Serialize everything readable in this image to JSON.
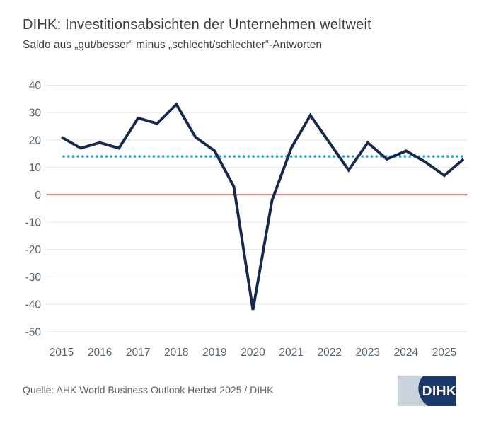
{
  "header": {
    "title": "DIHK: Investitionsabsichten der Unternehmen weltweit",
    "subtitle": "Saldo aus „gut/besser“ minus „schlecht/schlechter“-Antworten"
  },
  "footer": {
    "source": "Quelle: AHK World Business Outlook Herbst 2025 / DIHK",
    "logo_text": "DIHK"
  },
  "colors": {
    "series_line": "#18294e",
    "zero_line": "#bf4a47",
    "reference_line": "#29a8dc",
    "grid": "#e7e7e7",
    "tick_text": "#55636f",
    "logo_navy": "#1b3a6b",
    "logo_light": "#c9d1dc"
  },
  "chart_data": {
    "type": "line",
    "title": "DIHK: Investitionsabsichten der Unternehmen weltweit",
    "subtitle": "Saldo aus „gut/besser“ minus „schlecht/schlechter“-Antworten",
    "x": [
      2015.0,
      2015.5,
      2016.0,
      2016.5,
      2017.0,
      2017.5,
      2018.0,
      2018.5,
      2019.0,
      2019.5,
      2020.0,
      2020.5,
      2021.0,
      2021.5,
      2022.0,
      2022.5,
      2023.0,
      2023.5,
      2024.0,
      2024.5,
      2025.0,
      2025.5
    ],
    "values": [
      21,
      17,
      19,
      17,
      28,
      26,
      33,
      21,
      16,
      3,
      -42,
      -2,
      17,
      29,
      19,
      9,
      19,
      13,
      16,
      12,
      7,
      13
    ],
    "x_ticks": [
      "2015",
      "2016",
      "2017",
      "2018",
      "2019",
      "2020",
      "2021",
      "2022",
      "2023",
      "2024",
      "2025"
    ],
    "y_ticks": [
      40,
      30,
      20,
      10,
      0,
      -10,
      -20,
      -30,
      -40,
      -50
    ],
    "ylim": [
      -50,
      40
    ],
    "xlim": [
      2014.6,
      2025.6
    ],
    "zero_line": 0,
    "reference_line": 14,
    "grid": "horizontal",
    "legend": "none"
  }
}
